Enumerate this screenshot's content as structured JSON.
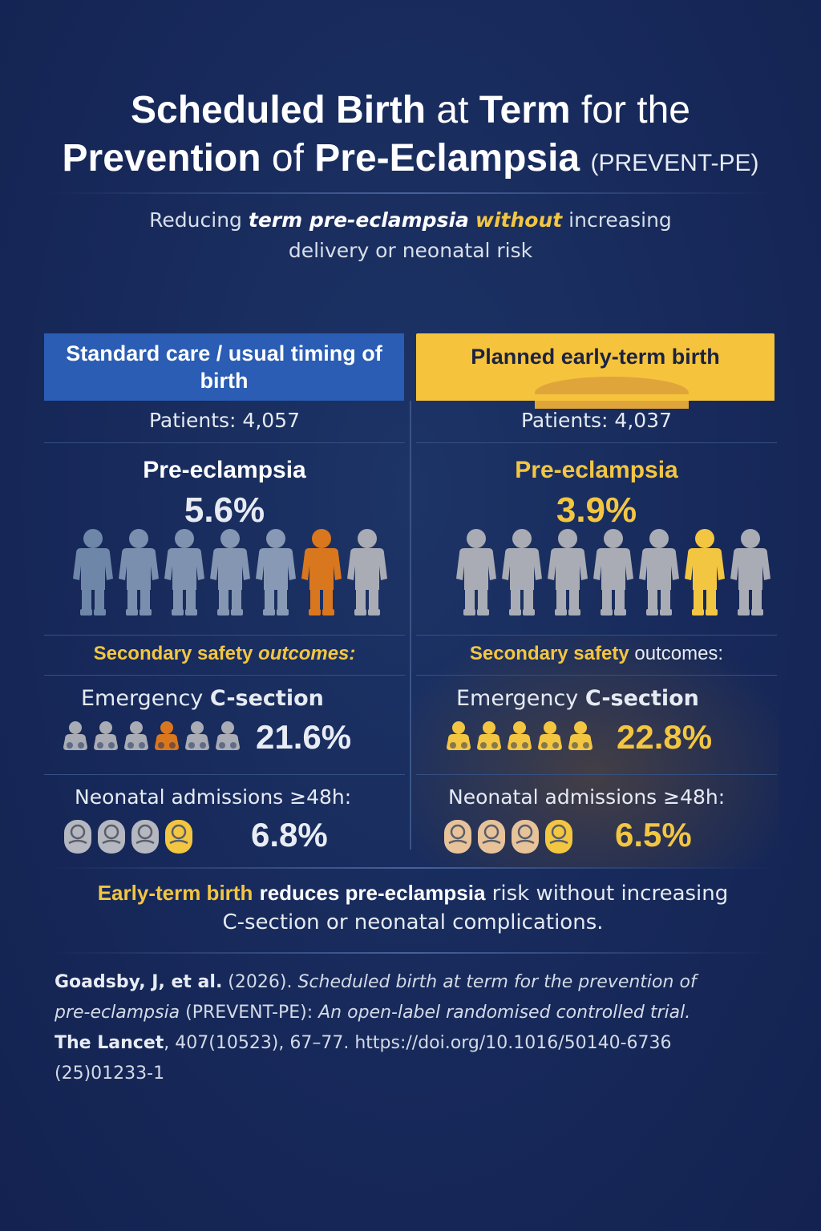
{
  "title": {
    "w1": "Scheduled Birth",
    "w2": "at",
    "w3": "Term",
    "w4": "for the",
    "w5": "Prevention",
    "w6": "of",
    "w7": "Pre-Eclampsia",
    "abbr": "(PREVENT-PE)"
  },
  "subtitle": {
    "s1": "Reducing",
    "s2": "term pre-eclampsia",
    "s3": "without",
    "s4": "increasing",
    "s5": "delivery or neonatal risk"
  },
  "left": {
    "header": "Standard care / usual timing of birth",
    "patients": "Patients: 4,057",
    "pe_label": "Pre-eclampsia",
    "pe_value": "5.6%",
    "people_highlight_index": 5,
    "sec_a": "Secondary safety",
    "sec_b": "outcomes:",
    "em_a": "Emergency",
    "em_b": "C-section",
    "em_value": "21.6%",
    "ne_label": "Neonatal admissions ≥48h:",
    "ne_value": "6.8%"
  },
  "right": {
    "header": "Planned early-term birth",
    "patients": "Patients: 4,037",
    "pe_label": "Pre-eclampsia",
    "pe_value": "3.9%",
    "people_highlight_index": 5,
    "sec_a": "Secondary safety",
    "sec_b": "outcomes:",
    "em_a": "Emergency",
    "em_b": "C-section",
    "em_value": "22.8%",
    "ne_label": "Neonatal admissions ≥48h:",
    "ne_value": "6.5%"
  },
  "conclusion": {
    "c1": "Early-term birth",
    "c2": "reduces pre-eclampsia",
    "c3": "risk without increasing",
    "c4": "C-section or neonatal complications."
  },
  "citation": {
    "author": "Goadsby, J, et al.",
    "year": " (2026). ",
    "title_a": "Scheduled birth at term for the prevention of",
    "title_b": "pre-eclampsia",
    "mid": " (PREVENT-PE): ",
    "title_c": "An open-label randomised controlled trial.",
    "journal": "The Lancet",
    "details": ", 407(10523), 67–77. https://doi.org/10.1016/50140-6736",
    "doi_end": "(25)01233-1"
  },
  "colors": {
    "background": "#17295a",
    "blue_header": "#2a5db3",
    "yellow_header": "#f6c33d",
    "accent_yellow": "#f3c642",
    "accent_orange": "#d9771e",
    "person_grey": "#a9acb4"
  }
}
